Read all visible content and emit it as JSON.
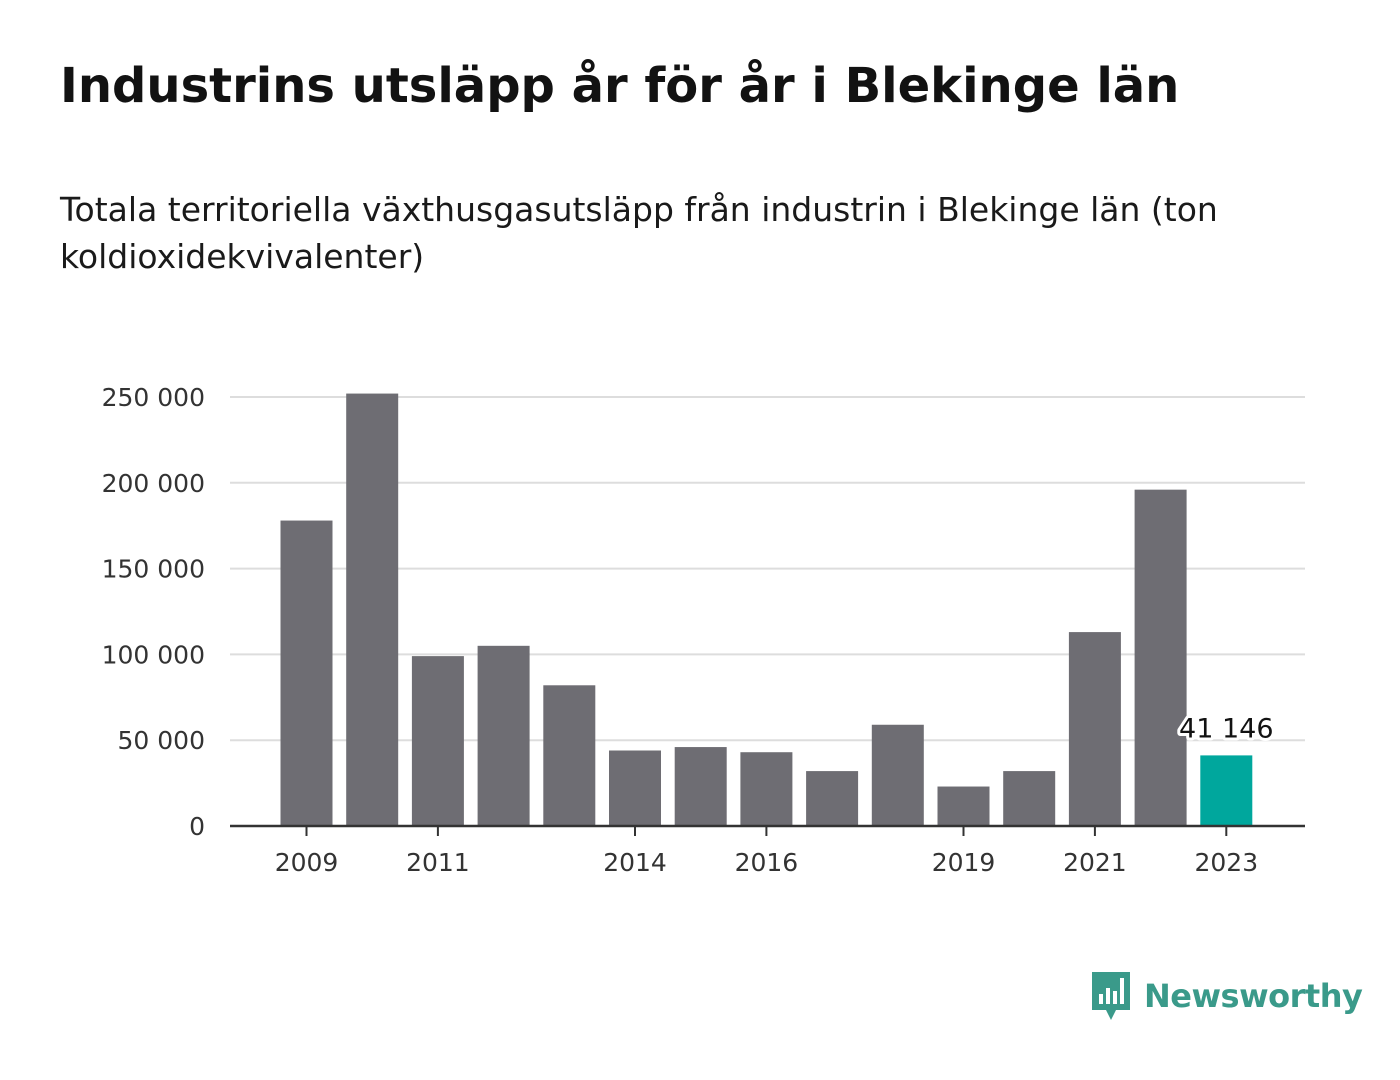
{
  "title": "Industrins utsläpp år för år i Blekinge län",
  "subtitle": "Totala territoriella växthusgasutsläpp från industrin i Blekinge län (ton koldioxidekvivalenter)",
  "brand": {
    "name": "Newsworthy",
    "icon": "bar-chart-speech-bubble-icon",
    "color": "#3a9a8a"
  },
  "colors": {
    "bar": "#6e6d73",
    "highlight": "#00a79d",
    "grid": "#dddddd",
    "axis": "#333333"
  },
  "chart_data": {
    "type": "bar",
    "categories": [
      "2009",
      "2010",
      "2011",
      "2012",
      "2013",
      "2014",
      "2015",
      "2016",
      "2017",
      "2018",
      "2019",
      "2020",
      "2021",
      "2022",
      "2023"
    ],
    "values": [
      178000,
      252000,
      99000,
      105000,
      82000,
      44000,
      46000,
      43000,
      32000,
      59000,
      23000,
      32000,
      113000,
      196000,
      41146
    ],
    "visible_x_ticks": [
      "2009",
      "2011",
      "2014",
      "2016",
      "2019",
      "2021",
      "2023"
    ],
    "y_ticks": [
      0,
      50000,
      100000,
      150000,
      200000,
      250000
    ],
    "y_tick_labels": [
      "0",
      "50 000",
      "100 000",
      "150 000",
      "200 000",
      "250 000"
    ],
    "ylim": [
      0,
      250000
    ],
    "highlight_index": 14,
    "data_label": "41 146",
    "grid": true,
    "legend": "none",
    "xlabel": "",
    "ylabel": ""
  }
}
